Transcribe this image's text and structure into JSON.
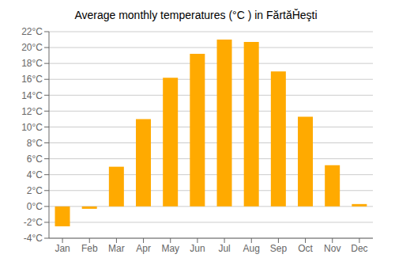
{
  "chart_data": {
    "type": "bar",
    "title": "Average monthly temperatures (°C ) in FărtăȞeşti",
    "categories": [
      "Jan",
      "Feb",
      "Mar",
      "Apr",
      "May",
      "Jun",
      "Jul",
      "Aug",
      "Sep",
      "Oct",
      "Nov",
      "Dec"
    ],
    "values": [
      -2.5,
      -0.3,
      5.0,
      11.0,
      16.2,
      19.2,
      21.0,
      20.7,
      17.0,
      11.3,
      5.2,
      0.3
    ],
    "color": "#FFAA00",
    "ylim": [
      -4,
      22
    ],
    "yticks": [
      {
        "value": -4,
        "label": "-4°C"
      },
      {
        "value": -2,
        "label": "-2°C"
      },
      {
        "value": 0,
        "label": "0°C"
      },
      {
        "value": 2,
        "label": "2°C"
      },
      {
        "value": 4,
        "label": "4°C"
      },
      {
        "value": 6,
        "label": "6°C"
      },
      {
        "value": 8,
        "label": "8°C"
      },
      {
        "value": 10,
        "label": "10°C"
      },
      {
        "value": 12,
        "label": "12°C"
      },
      {
        "value": 14,
        "label": "14°C"
      },
      {
        "value": 16,
        "label": "16°C"
      },
      {
        "value": 18,
        "label": "18°C"
      },
      {
        "value": 20,
        "label": "20°C"
      },
      {
        "value": 22,
        "label": "22°C"
      }
    ],
    "grid": true
  }
}
